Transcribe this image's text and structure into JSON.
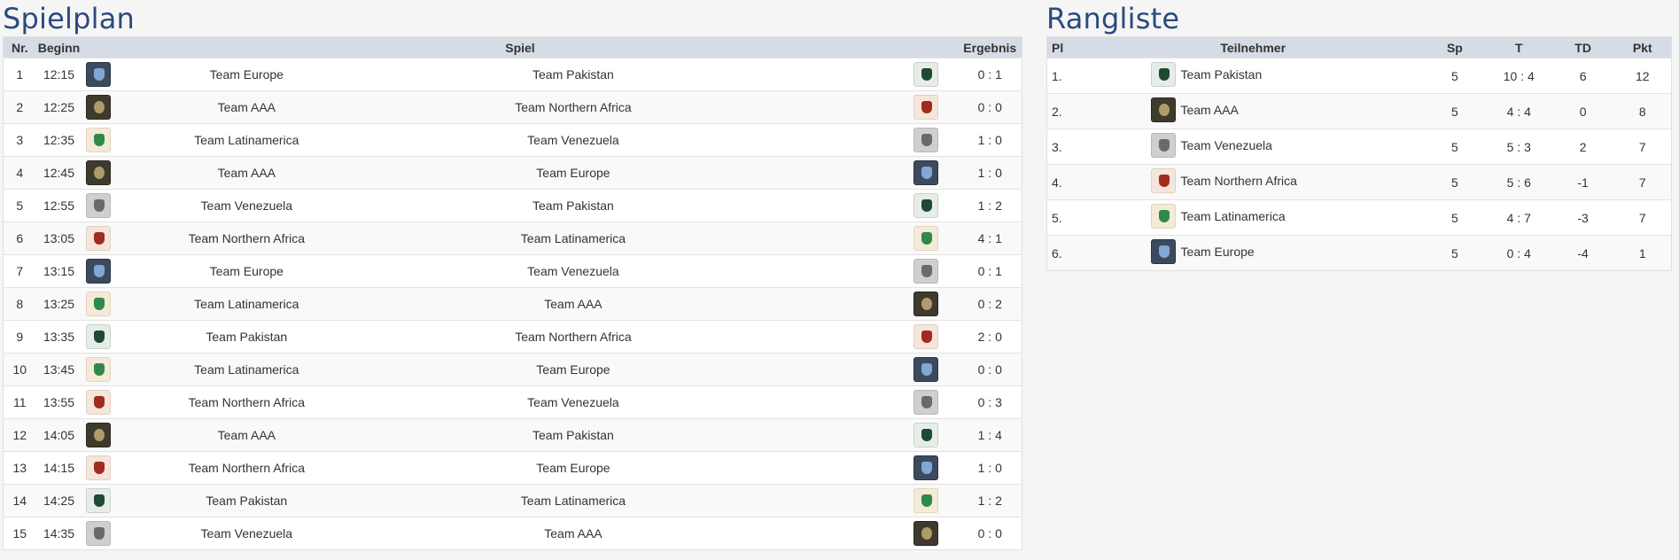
{
  "schedule": {
    "title": "Spielplan",
    "headers": {
      "nr": "Nr.",
      "begin": "Beginn",
      "game": "Spiel",
      "result": "Ergebnis"
    },
    "matches": [
      {
        "nr": "1",
        "time": "12:15",
        "home": "Team Europe",
        "home_logo": "europe",
        "away": "Team Pakistan",
        "away_logo": "pakistan",
        "result": "0 : 1"
      },
      {
        "nr": "2",
        "time": "12:25",
        "home": "Team AAA",
        "home_logo": "aaa",
        "away": "Team Northern Africa",
        "away_logo": "africa",
        "result": "0 : 0"
      },
      {
        "nr": "3",
        "time": "12:35",
        "home": "Team Latinamerica",
        "home_logo": "latam",
        "away": "Team Venezuela",
        "away_logo": "venezuela",
        "result": "1 : 0"
      },
      {
        "nr": "4",
        "time": "12:45",
        "home": "Team AAA",
        "home_logo": "aaa",
        "away": "Team Europe",
        "away_logo": "europe",
        "result": "1 : 0"
      },
      {
        "nr": "5",
        "time": "12:55",
        "home": "Team Venezuela",
        "home_logo": "venezuela",
        "away": "Team Pakistan",
        "away_logo": "pakistan",
        "result": "1 : 2"
      },
      {
        "nr": "6",
        "time": "13:05",
        "home": "Team Northern Africa",
        "home_logo": "africa",
        "away": "Team Latinamerica",
        "away_logo": "latam",
        "result": "4 : 1"
      },
      {
        "nr": "7",
        "time": "13:15",
        "home": "Team Europe",
        "home_logo": "europe",
        "away": "Team Venezuela",
        "away_logo": "venezuela",
        "result": "0 : 1"
      },
      {
        "nr": "8",
        "time": "13:25",
        "home": "Team Latinamerica",
        "home_logo": "latam",
        "away": "Team AAA",
        "away_logo": "aaa",
        "result": "0 : 2"
      },
      {
        "nr": "9",
        "time": "13:35",
        "home": "Team Pakistan",
        "home_logo": "pakistan",
        "away": "Team Northern Africa",
        "away_logo": "africa",
        "result": "2 : 0"
      },
      {
        "nr": "10",
        "time": "13:45",
        "home": "Team Latinamerica",
        "home_logo": "latam",
        "away": "Team Europe",
        "away_logo": "europe",
        "result": "0 : 0"
      },
      {
        "nr": "11",
        "time": "13:55",
        "home": "Team Northern Africa",
        "home_logo": "africa",
        "away": "Team Venezuela",
        "away_logo": "venezuela",
        "result": "0 : 3"
      },
      {
        "nr": "12",
        "time": "14:05",
        "home": "Team AAA",
        "home_logo": "aaa",
        "away": "Team Pakistan",
        "away_logo": "pakistan",
        "result": "1 : 4"
      },
      {
        "nr": "13",
        "time": "14:15",
        "home": "Team Northern Africa",
        "home_logo": "africa",
        "away": "Team Europe",
        "away_logo": "europe",
        "result": "1 : 0"
      },
      {
        "nr": "14",
        "time": "14:25",
        "home": "Team Pakistan",
        "home_logo": "pakistan",
        "away": "Team Latinamerica",
        "away_logo": "latam",
        "result": "1 : 2"
      },
      {
        "nr": "15",
        "time": "14:35",
        "home": "Team Venezuela",
        "home_logo": "venezuela",
        "away": "Team AAA",
        "away_logo": "aaa",
        "result": "0 : 0"
      }
    ]
  },
  "standings": {
    "title": "Rangliste",
    "headers": {
      "pl": "Pl",
      "team": "Teilnehmer",
      "sp": "Sp",
      "t": "T",
      "td": "TD",
      "pkt": "Pkt"
    },
    "rows": [
      {
        "pl": "1.",
        "team": "Team Pakistan",
        "logo": "pakistan",
        "sp": "5",
        "t": "10 : 4",
        "td": "6",
        "pkt": "12"
      },
      {
        "pl": "2.",
        "team": "Team AAA",
        "logo": "aaa",
        "sp": "5",
        "t": "4 : 4",
        "td": "0",
        "pkt": "8"
      },
      {
        "pl": "3.",
        "team": "Team Venezuela",
        "logo": "venezuela",
        "sp": "5",
        "t": "5 : 3",
        "td": "2",
        "pkt": "7"
      },
      {
        "pl": "4.",
        "team": "Team Northern Africa",
        "logo": "africa",
        "sp": "5",
        "t": "5 : 6",
        "td": "-1",
        "pkt": "7"
      },
      {
        "pl": "5.",
        "team": "Team Latinamerica",
        "logo": "latam",
        "sp": "5",
        "t": "4 : 7",
        "td": "-3",
        "pkt": "7"
      },
      {
        "pl": "6.",
        "team": "Team Europe",
        "logo": "europe",
        "sp": "5",
        "t": "0 : 4",
        "td": "-4",
        "pkt": "1"
      }
    ]
  }
}
